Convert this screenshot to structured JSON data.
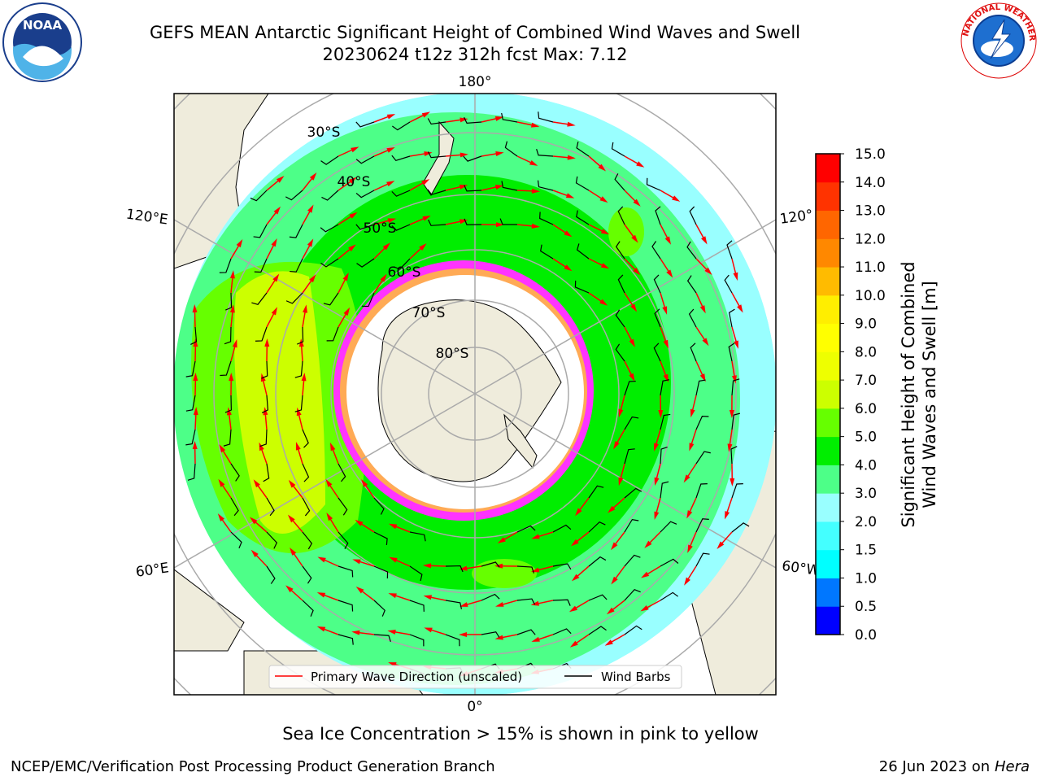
{
  "title": {
    "line1": "GEFS MEAN Antarctic Significant Height of Combined Wind Waves and Swell",
    "line2": "20230624 t12z 312h fcst   Max: 7.12"
  },
  "logos": {
    "left": "NOAA",
    "right": "NATIONAL WEATHER SERVICE"
  },
  "map": {
    "meridian_labels": [
      "180°",
      "120°E",
      "120°",
      "60°E",
      "60°W",
      "0°"
    ],
    "parallel_labels": [
      "30°S",
      "40°S",
      "50°S",
      "60°S",
      "70°S",
      "80°S"
    ]
  },
  "legend": {
    "items": [
      {
        "label": "Primary Wave Direction (unscaled)",
        "color": "#ff0000"
      },
      {
        "label": "Wind Barbs",
        "color": "#000000"
      }
    ]
  },
  "colorbar": {
    "label_line1": "Significant Height of Combined",
    "label_line2": "Wind Waves and Swell [m]",
    "ticks": [
      "0.0",
      "0.5",
      "1.0",
      "1.5",
      "2.0",
      "3.0",
      "4.0",
      "5.0",
      "6.0",
      "7.0",
      "8.0",
      "9.0",
      "10.0",
      "11.0",
      "12.0",
      "13.0",
      "14.0",
      "15.0"
    ],
    "colors": [
      "#0000ff",
      "#0077ff",
      "#00ffff",
      "#44ffff",
      "#99ffff",
      "#4dff88",
      "#00ee00",
      "#66ff00",
      "#ccff00",
      "#eeff00",
      "#ffff00",
      "#ffee00",
      "#ffbb00",
      "#ff8800",
      "#ff6600",
      "#ff3300",
      "#ff0000"
    ]
  },
  "footer": {
    "note": "Sea Ice Concentration > 15% is shown in pink to yellow",
    "credit": "NCEP/EMC/Verification Post Processing Product Generation Branch",
    "date": "26 Jun 2023 on",
    "host": "Hera"
  }
}
